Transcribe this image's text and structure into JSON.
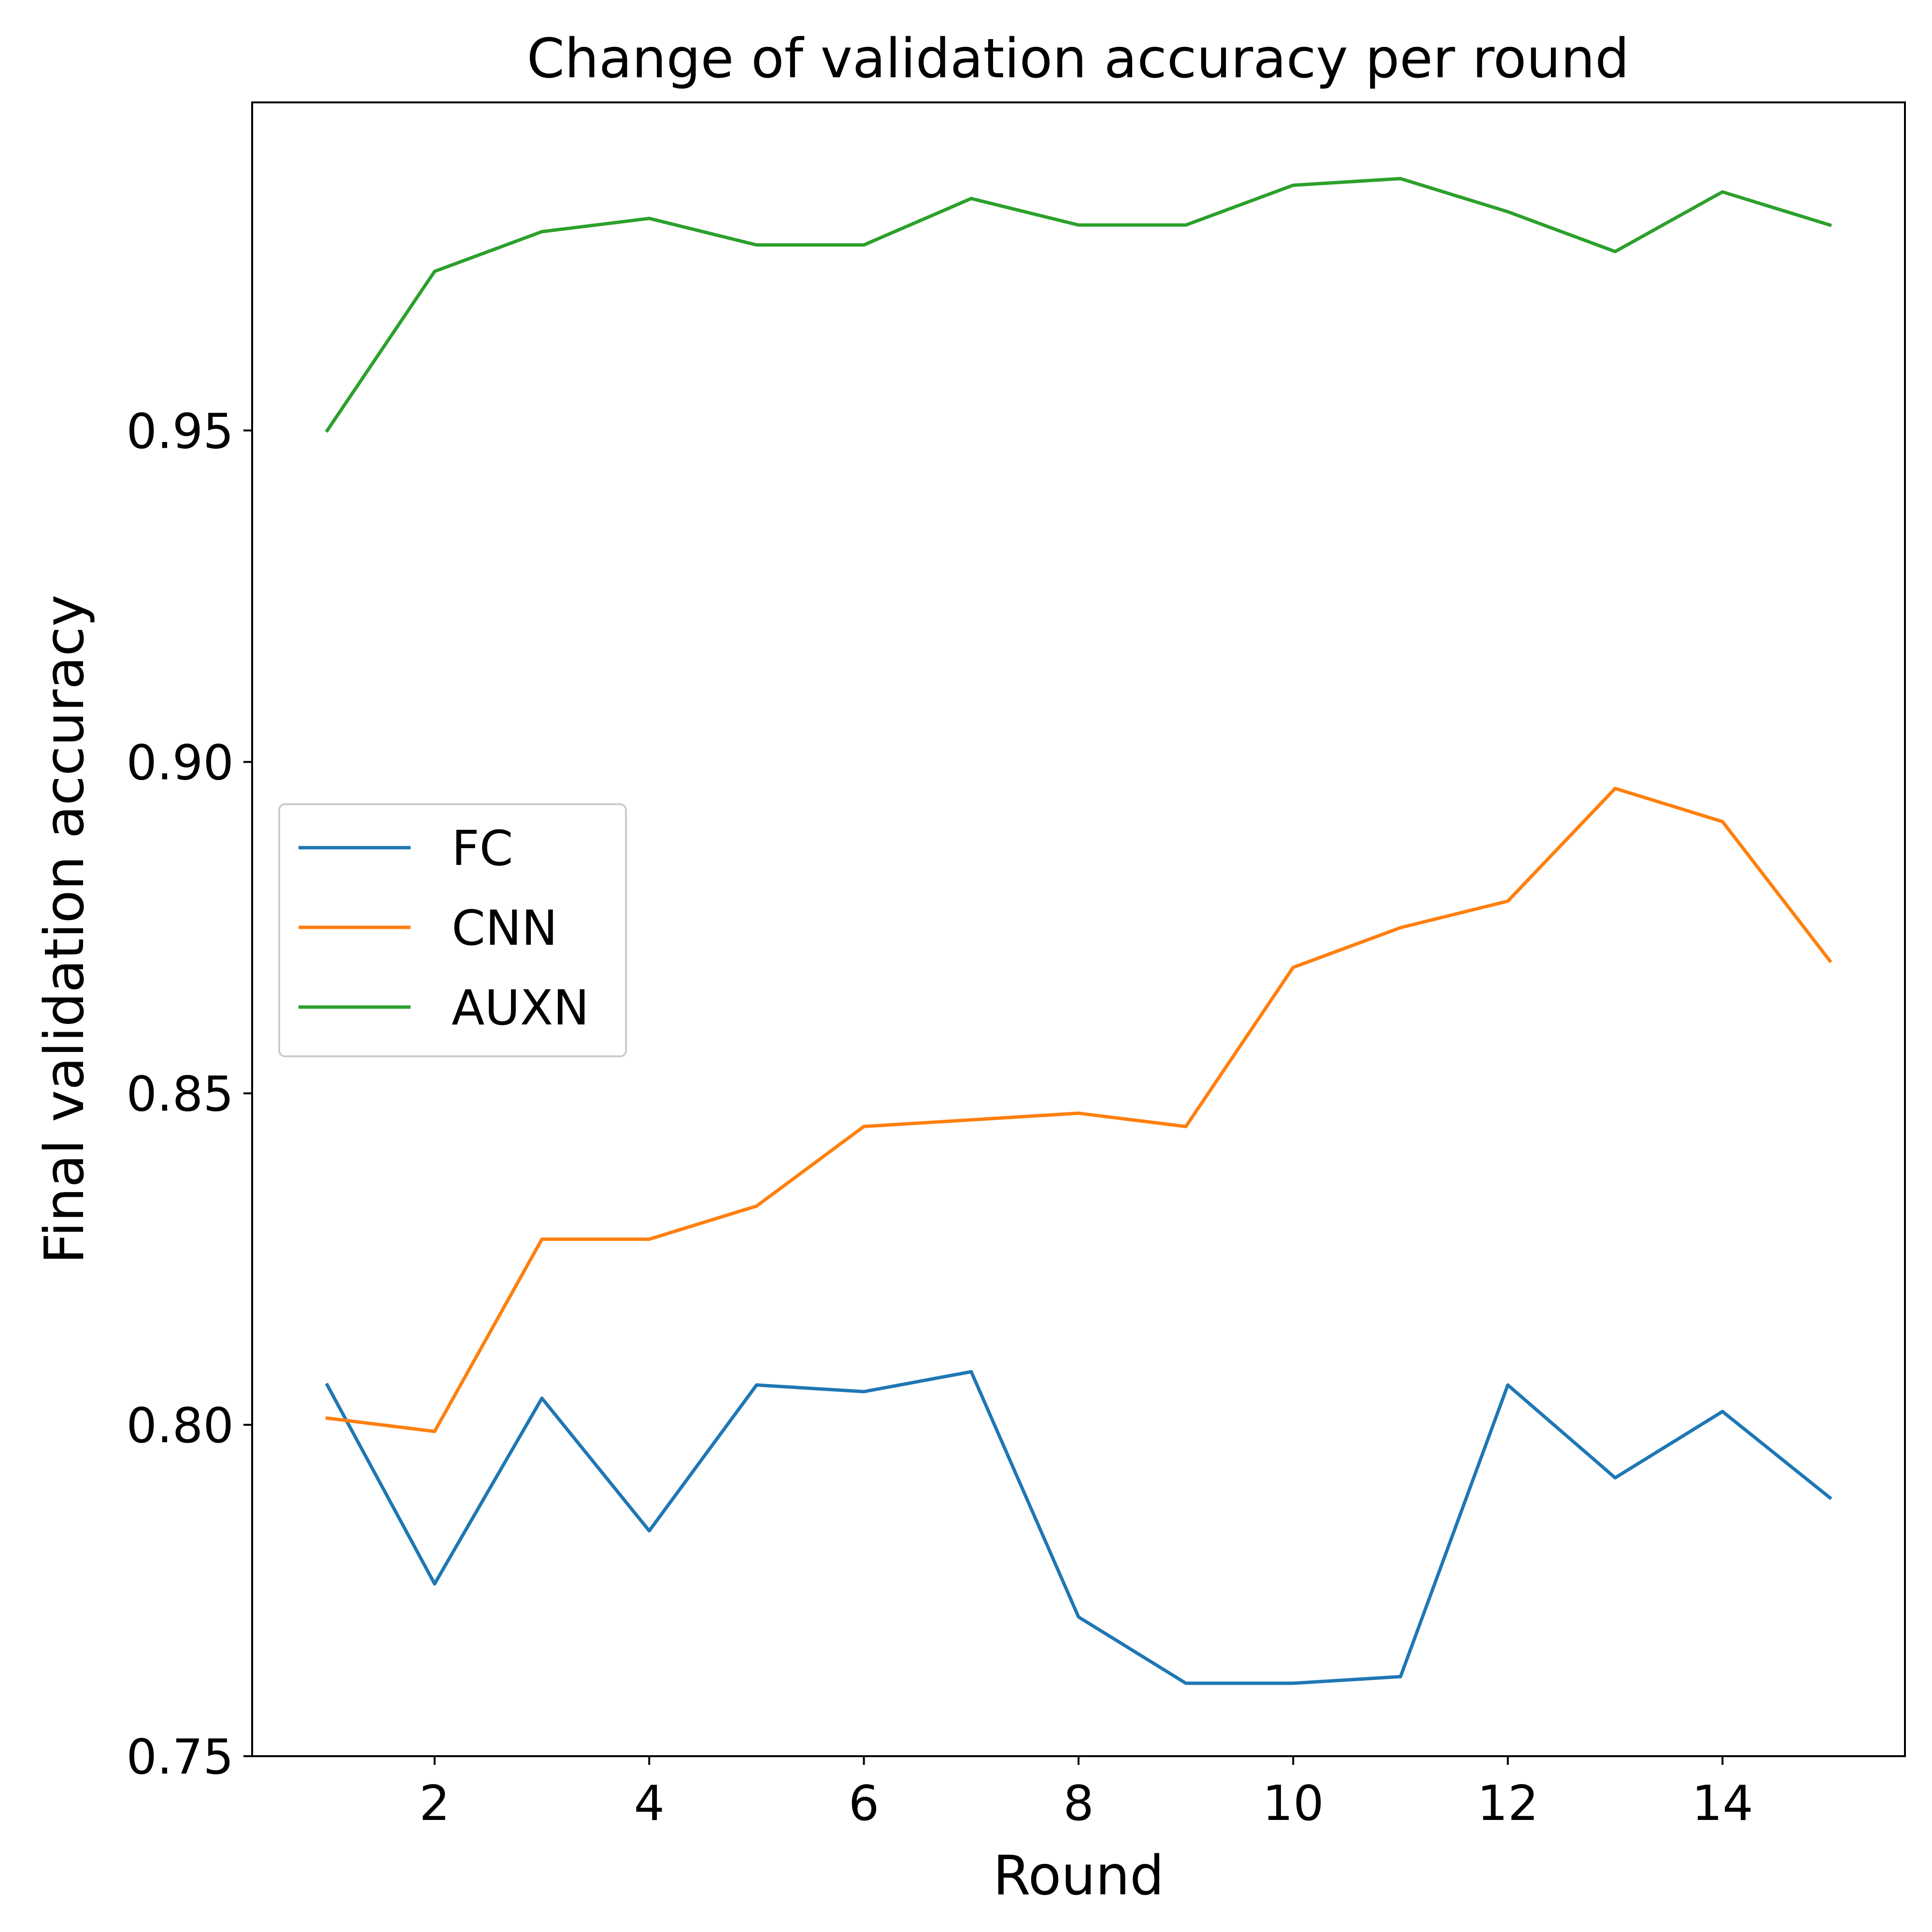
{
  "chart_data": {
    "type": "line",
    "title": "Change of validation accuracy per round",
    "xlabel": "Round",
    "ylabel": "Final validation accuracy",
    "x": [
      1,
      2,
      3,
      4,
      5,
      6,
      7,
      8,
      9,
      10,
      11,
      12,
      13,
      14,
      15
    ],
    "xlim": [
      0.3,
      15.7
    ],
    "ylim": [
      0.75,
      0.9995
    ],
    "x_ticks": [
      2,
      4,
      6,
      8,
      10,
      12,
      14
    ],
    "y_ticks": [
      0.75,
      0.8,
      0.85,
      0.9,
      0.95
    ],
    "y_tick_labels": [
      "0.75",
      "0.80",
      "0.85",
      "0.90",
      "0.95"
    ],
    "grid": false,
    "legend_position": "center-left",
    "series": [
      {
        "name": "FC",
        "color": "#1f77b4",
        "values": [
          0.806,
          0.776,
          0.804,
          0.784,
          0.806,
          0.805,
          0.808,
          0.771,
          0.761,
          0.761,
          0.762,
          0.806,
          0.792,
          0.802,
          0.789
        ]
      },
      {
        "name": "CNN",
        "color": "#ff7f0e",
        "values": [
          0.801,
          0.799,
          0.828,
          0.828,
          0.833,
          0.845,
          0.846,
          0.847,
          0.845,
          0.869,
          0.875,
          0.879,
          0.896,
          0.891,
          0.87
        ]
      },
      {
        "name": "AUXN",
        "color": "#2ca02c",
        "values": [
          0.95,
          0.974,
          0.98,
          0.982,
          0.978,
          0.978,
          0.985,
          0.981,
          0.981,
          0.987,
          0.988,
          0.983,
          0.977,
          0.986,
          0.981
        ]
      }
    ]
  }
}
